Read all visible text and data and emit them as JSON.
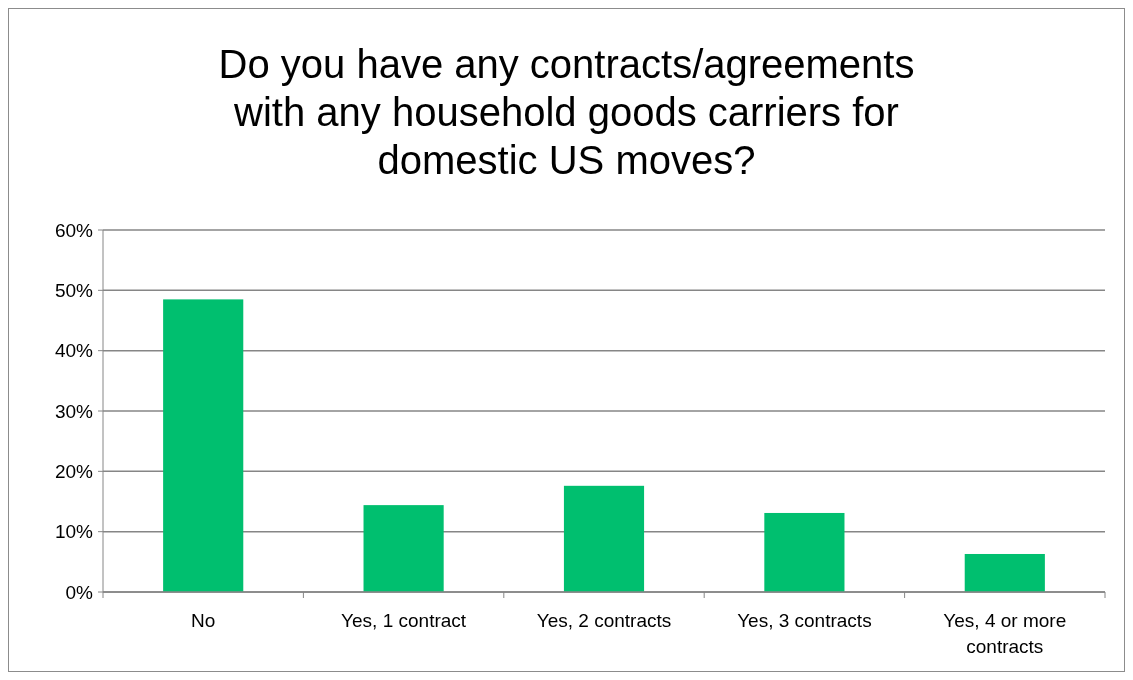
{
  "chart_data": {
    "type": "bar",
    "title": "Do you have any contracts/agreements with any household goods carriers for domestic US moves?",
    "categories": [
      "No",
      "Yes, 1 contract",
      "Yes, 2 contracts",
      "Yes, 3 contracts",
      "Yes, 4 or more contracts"
    ],
    "values": [
      48.5,
      14.4,
      17.6,
      13.1,
      6.3
    ],
    "color": "#00bf6f",
    "ylim": [
      0,
      60
    ],
    "yticks": [
      {
        "value": 0,
        "label": "0%"
      },
      {
        "value": 10,
        "label": "10%"
      },
      {
        "value": 20,
        "label": "20%"
      },
      {
        "value": 30,
        "label": "30%"
      },
      {
        "value": 40,
        "label": "40%"
      },
      {
        "value": 50,
        "label": "50%"
      },
      {
        "value": 60,
        "label": "60%"
      }
    ],
    "grid": "y"
  }
}
